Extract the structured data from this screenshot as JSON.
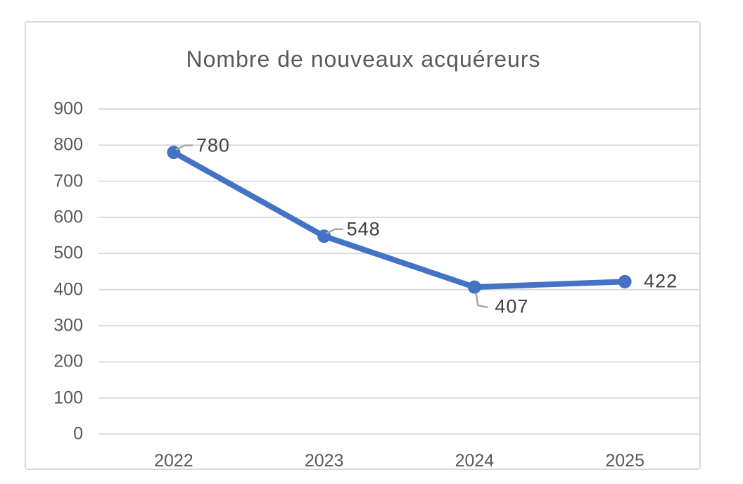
{
  "chart_data": {
    "type": "line",
    "title": "Nombre de nouveaux acquéreurs",
    "categories": [
      "2022",
      "2023",
      "2024",
      "2025"
    ],
    "series": [
      {
        "name": "Nombre de nouveaux acquéreurs",
        "values": [
          780,
          548,
          407,
          422
        ]
      }
    ],
    "data_labels": [
      "780",
      "548",
      "407",
      "422"
    ],
    "label_positions": [
      "above-right",
      "above-right",
      "below-right",
      "right"
    ],
    "xlabel": "",
    "ylabel": "",
    "ylim": [
      0,
      900
    ],
    "ytick_step": 100,
    "ytick_labels": [
      "0",
      "100",
      "200",
      "300",
      "400",
      "500",
      "600",
      "700",
      "800",
      "900"
    ],
    "grid": "horizontal",
    "legend_position": "none",
    "colors": {
      "line": "#4472C4",
      "marker": "#4472C4",
      "grid": "#D9D9D9",
      "frame": "#D9D9D9",
      "title_text": "#595959",
      "axis_text": "#595959",
      "label_text": "#404040",
      "leader": "#A6A6A6",
      "background": "#FFFFFF"
    }
  }
}
